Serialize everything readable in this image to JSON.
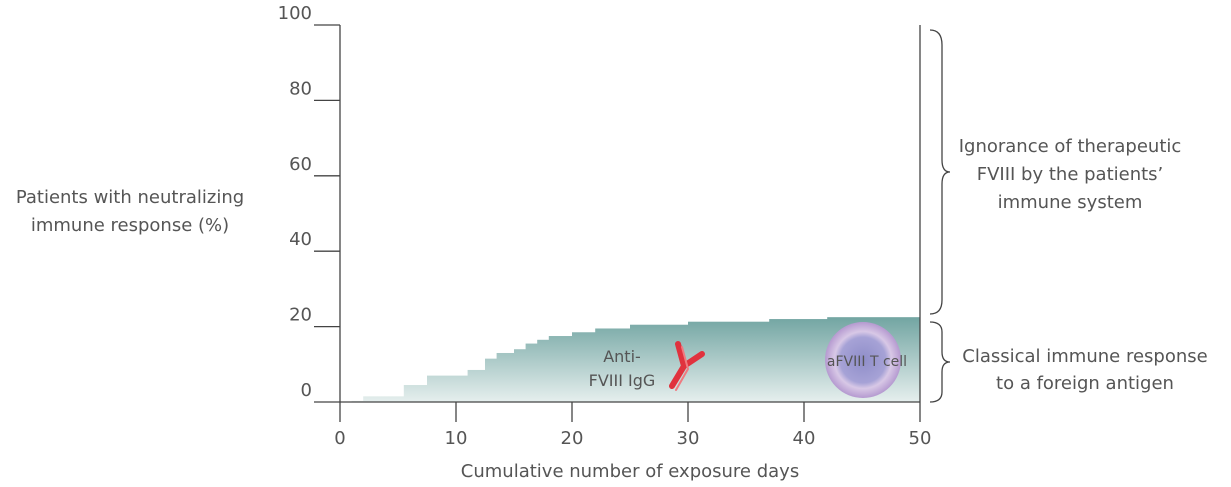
{
  "chart_data": {
    "type": "step-area",
    "y_label": [
      "Patients with neutralizing",
      "immune response (%)"
    ],
    "x_label": "Cumulative number of exposure days",
    "x": [
      1,
      2,
      5.5,
      7.5,
      11,
      12.5,
      13.5,
      15,
      16,
      17,
      18,
      20,
      22,
      25,
      30,
      37,
      42
    ],
    "values": [
      0.3,
      1.5,
      4.5,
      7,
      8.5,
      11.5,
      13,
      14,
      15.5,
      16.5,
      17.5,
      18.5,
      19.5,
      20.5,
      21.3,
      22,
      22.5
    ],
    "color": "#6fa3a0",
    "xlim": [
      0,
      50
    ],
    "xticks": [
      0,
      10,
      20,
      30,
      40,
      50
    ],
    "ylim": [
      0,
      100
    ],
    "yticks": [
      0,
      20,
      40,
      60,
      80,
      100
    ],
    "annotations": {
      "antibody": [
        "Anti-",
        "FVIII IgG"
      ],
      "cell": "aFVIII T cell",
      "upper_brace": [
        "Ignorance of therapeutic",
        "FVIII by the patients’",
        "immune system"
      ],
      "lower_brace": [
        "Classical immune response",
        "to a foreign antigen"
      ]
    }
  }
}
